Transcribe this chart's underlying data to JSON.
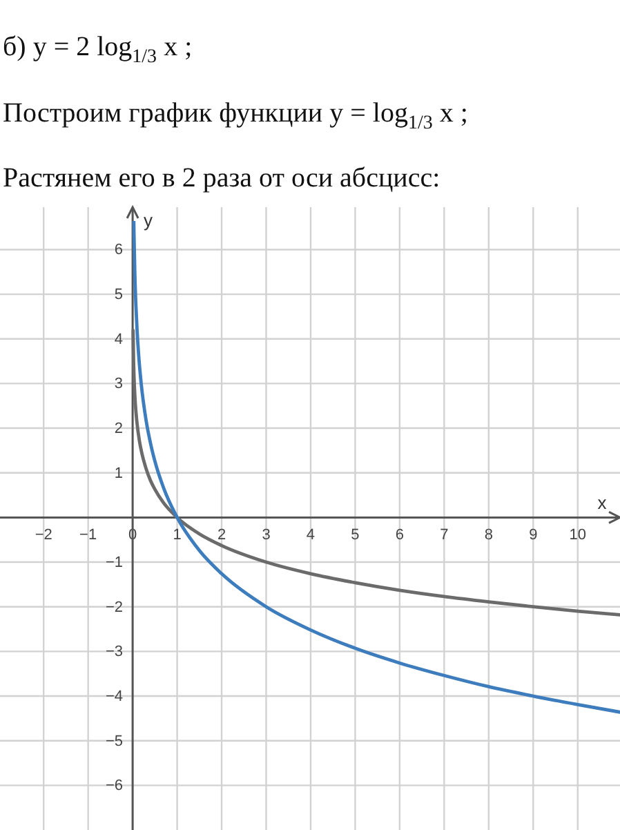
{
  "chart_data": {
    "type": "line",
    "title": "б) y = 2 log$_{1/3}$ x ;",
    "annotations": [
      "Построим график функции y = log$_{1/3}$ x ;",
      "Растянем его в 2 раза от оси абсцисс:"
    ],
    "xlabel": "x",
    "ylabel": "y",
    "xlim": [
      -2.98,
      10.95
    ],
    "ylim": [
      -7,
      6.95
    ],
    "xticks": [
      -2,
      -1,
      0,
      1,
      2,
      3,
      4,
      5,
      6,
      7,
      8,
      9,
      10
    ],
    "yticks": [
      -6,
      -5,
      -4,
      -3,
      -2,
      -1,
      1,
      2,
      3,
      4,
      5,
      6
    ],
    "grid": true,
    "series": [
      {
        "color": "#6b6b6b",
        "x": [
          0.01,
          0.022,
          0.03,
          0.05,
          0.075,
          0.1,
          0.15,
          0.2,
          0.3,
          0.4,
          0.5,
          0.7,
          1,
          1.5,
          2,
          3,
          4,
          5,
          6,
          7,
          8,
          9,
          10,
          10.95
        ],
        "values": [
          4.19,
          3.47,
          3.19,
          2.73,
          2.36,
          2.1,
          1.73,
          1.47,
          1.1,
          0.83,
          0.63,
          0.32,
          0,
          -0.37,
          -0.63,
          -1,
          -1.26,
          -1.46,
          -1.63,
          -1.77,
          -1.89,
          -2,
          -2.1,
          -2.18
        ]
      },
      {
        "color": "#3d7cbd",
        "x": [
          0.022,
          0.03,
          0.05,
          0.075,
          0.1,
          0.15,
          0.2,
          0.3,
          0.4,
          0.5,
          0.7,
          1,
          1.5,
          2,
          3,
          4,
          5,
          6,
          7,
          8,
          9,
          10,
          10.95
        ],
        "values": [
          6.95,
          6.38,
          5.45,
          4.72,
          4.19,
          3.45,
          2.93,
          2.19,
          1.67,
          1.26,
          0.65,
          0,
          -0.74,
          -1.26,
          -2,
          -2.52,
          -2.93,
          -3.26,
          -3.54,
          -3.79,
          -4,
          -4.19,
          -4.36
        ]
      }
    ]
  }
}
